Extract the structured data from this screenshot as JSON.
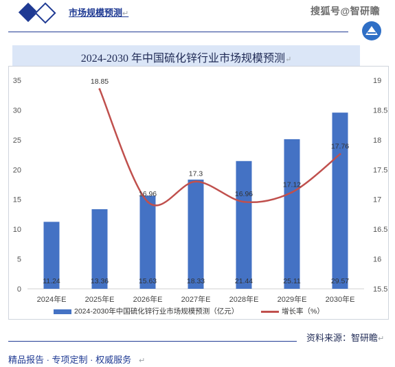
{
  "header": {
    "brand_title": "市场规模预测",
    "return_mark": "↵",
    "watermark": "搜狐号@智研瞻"
  },
  "title": {
    "text": "2024-2030 年中国硫化锌行业市场规模预测",
    "return_mark": "↵"
  },
  "chart_data": {
    "type": "bar",
    "title": "2024-2030 年中国硫化锌行业市场规模预测",
    "categories": [
      "2024年E",
      "2025年E",
      "2026年E",
      "2027年E",
      "2028年E",
      "2029年E",
      "2030年E"
    ],
    "series": [
      {
        "name": "2024-2030年中国硫化锌行业市场规模预测（亿元）",
        "type": "bar",
        "axis": "left",
        "color": "#4472c4",
        "values": [
          11.24,
          13.36,
          15.63,
          18.33,
          21.44,
          25.11,
          29.57
        ]
      },
      {
        "name": "增长率（%）",
        "type": "line",
        "axis": "right",
        "color": "#c0504d",
        "values": [
          null,
          18.85,
          16.96,
          17.3,
          16.96,
          17.12,
          17.76
        ]
      }
    ],
    "y_left": {
      "min": 0,
      "max": 35,
      "ticks": [
        0,
        5,
        10,
        15,
        20,
        25,
        30,
        35
      ]
    },
    "y_right": {
      "min": 15.5,
      "max": 19,
      "ticks": [
        "15.5",
        "16",
        "16.5",
        "17",
        "17.5",
        "18",
        "18.5",
        "19"
      ]
    },
    "grid": false,
    "legend": "bottom"
  },
  "footer": {
    "source": "资料来源：智研瞻",
    "return_mark": "↵",
    "services": "精品报告 · 专项定制 · 权威服务",
    "services_mark": "↵"
  }
}
